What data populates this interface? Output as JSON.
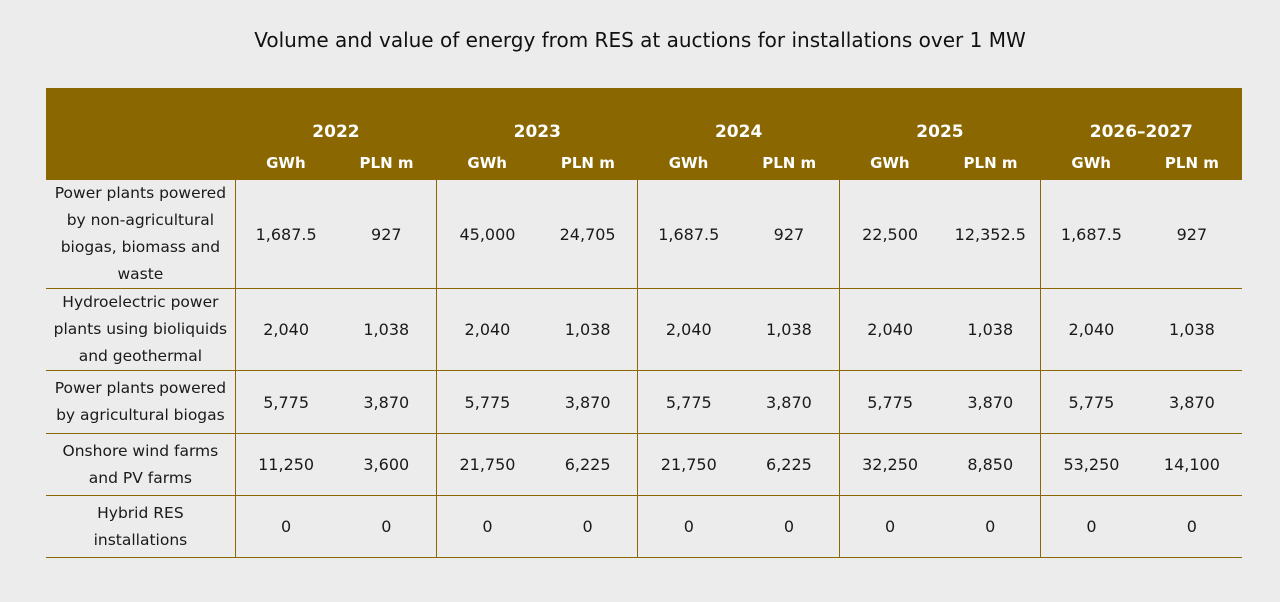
{
  "chart_data": {
    "type": "table",
    "title": "Volume and value of energy from RES at auctions for installations over 1 MW",
    "years": [
      "2022",
      "2023",
      "2024",
      "2025",
      "2026–2027"
    ],
    "units": [
      "GWh",
      "PLN m"
    ],
    "rows": [
      {
        "label": "Power plants powered by non-agricultural biogas, biomass and waste",
        "values": [
          "1,687.5",
          "927",
          "45,000",
          "24,705",
          "1,687.5",
          "927",
          "22,500",
          "12,352.5",
          "1,687.5",
          "927"
        ]
      },
      {
        "label": "Hydroelectric power plants using bioliquids and geothermal",
        "values": [
          "2,040",
          "1,038",
          "2,040",
          "1,038",
          "2,040",
          "1,038",
          "2,040",
          "1,038",
          "2,040",
          "1,038"
        ]
      },
      {
        "label": "Power plants powered by agricultural biogas",
        "values": [
          "5,775",
          "3,870",
          "5,775",
          "3,870",
          "5,775",
          "3,870",
          "5,775",
          "3,870",
          "5,775",
          "3,870"
        ]
      },
      {
        "label": "Onshore wind farms and PV farms",
        "values": [
          "11,250",
          "3,600",
          "21,750",
          "6,225",
          "21,750",
          "6,225",
          "32,250",
          "8,850",
          "53,250",
          "14,100"
        ]
      },
      {
        "label": "Hybrid RES installations",
        "values": [
          "0",
          "0",
          "0",
          "0",
          "0",
          "0",
          "0",
          "0",
          "0",
          "0"
        ]
      }
    ]
  },
  "colors": {
    "header_bg": "#8a6700",
    "header_text": "#ffffff",
    "rule": "#8a6700",
    "page_bg": "#ececec"
  }
}
